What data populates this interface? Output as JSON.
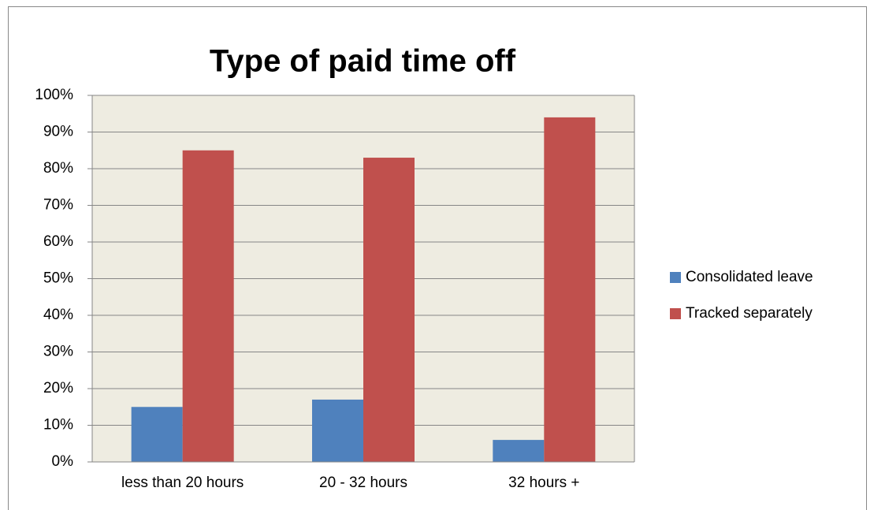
{
  "chart_data": {
    "type": "bar",
    "title": "Type of paid time off",
    "categories": [
      "less than 20 hours",
      "20 - 32 hours",
      "32 hours +"
    ],
    "series": [
      {
        "name": "Consolidated leave",
        "color": "#4f81bd",
        "values": [
          15,
          17,
          6
        ]
      },
      {
        "name": "Tracked separately",
        "color": "#c0504d",
        "values": [
          85,
          83,
          94
        ]
      }
    ],
    "ylim": [
      0,
      100
    ],
    "yticks": [
      {
        "value": 0,
        "label": "0%"
      },
      {
        "value": 10,
        "label": "10%"
      },
      {
        "value": 20,
        "label": "20%"
      },
      {
        "value": 30,
        "label": "30%"
      },
      {
        "value": 40,
        "label": "40%"
      },
      {
        "value": 50,
        "label": "50%"
      },
      {
        "value": 60,
        "label": "60%"
      },
      {
        "value": 70,
        "label": "70%"
      },
      {
        "value": 80,
        "label": "80%"
      },
      {
        "value": 90,
        "label": "90%"
      },
      {
        "value": 100,
        "label": "100%"
      }
    ],
    "grid": true,
    "legend": "right"
  }
}
